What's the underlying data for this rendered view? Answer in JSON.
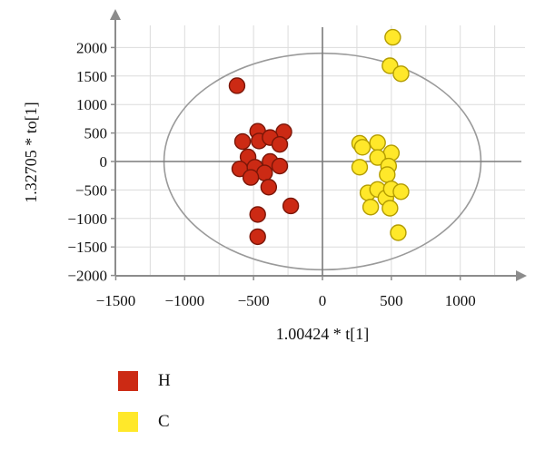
{
  "chart_data": {
    "type": "scatter",
    "title": "",
    "xlabel": "1.00424 * t[1]",
    "ylabel": "1.32705 * to[1]",
    "xlim": [
      -1500,
      1500
    ],
    "ylim": [
      -2000,
      2000
    ],
    "xticks": [
      -1500,
      -1000,
      -500,
      0,
      500,
      1000
    ],
    "yticks": [
      -2000,
      -1500,
      -1000,
      -500,
      0,
      500,
      1000,
      1500,
      2000
    ],
    "xtick_labels": [
      "−1500",
      "−1000",
      "−500",
      "0",
      "500",
      "1000"
    ],
    "ytick_labels": [
      "−2000",
      "−1500",
      "−1000",
      "−500",
      "0",
      "500",
      "1000",
      "1500",
      "2000"
    ],
    "grid": true,
    "legend_position": "bottom-left",
    "series": [
      {
        "name": "H",
        "color": "#cc2a14",
        "points": [
          [
            -620,
            1330
          ],
          [
            -470,
            530
          ],
          [
            -280,
            520
          ],
          [
            -580,
            350
          ],
          [
            -460,
            360
          ],
          [
            -380,
            420
          ],
          [
            -310,
            300
          ],
          [
            -540,
            80
          ],
          [
            -380,
            0
          ],
          [
            -600,
            -130
          ],
          [
            -490,
            -100
          ],
          [
            -420,
            -200
          ],
          [
            -310,
            -80
          ],
          [
            -520,
            -280
          ],
          [
            -390,
            -450
          ],
          [
            -230,
            -780
          ],
          [
            -470,
            -930
          ],
          [
            -470,
            -1320
          ]
        ]
      },
      {
        "name": "C",
        "color": "#ffe82a",
        "points": [
          [
            510,
            2180
          ],
          [
            490,
            1680
          ],
          [
            570,
            1540
          ],
          [
            270,
            320
          ],
          [
            290,
            250
          ],
          [
            400,
            330
          ],
          [
            500,
            150
          ],
          [
            400,
            70
          ],
          [
            270,
            -100
          ],
          [
            480,
            -80
          ],
          [
            470,
            -230
          ],
          [
            330,
            -550
          ],
          [
            400,
            -490
          ],
          [
            460,
            -640
          ],
          [
            500,
            -480
          ],
          [
            570,
            -530
          ],
          [
            350,
            -800
          ],
          [
            490,
            -820
          ],
          [
            550,
            -1250
          ]
        ]
      }
    ]
  }
}
